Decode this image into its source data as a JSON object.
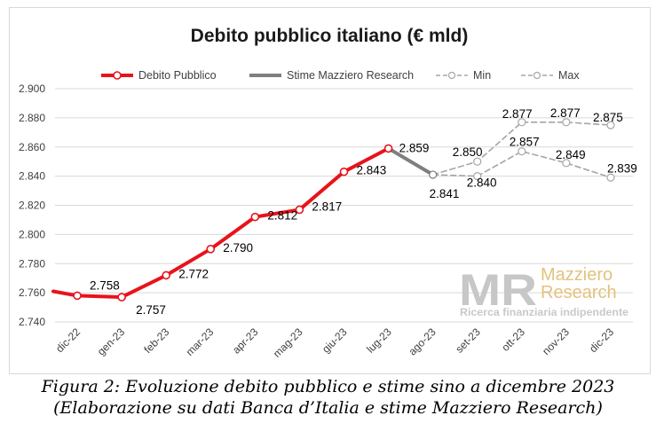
{
  "chart_data": {
    "type": "line",
    "title": "Debito pubblico italiano (€ mld)",
    "categories": [
      "dic-22",
      "gen-23",
      "feb-23",
      "mar-23",
      "apr-23",
      "mag-23",
      "giu-23",
      "lug-23",
      "ago-23",
      "set-23",
      "ott-23",
      "nov-23",
      "dic-23"
    ],
    "ylim": [
      2740,
      2900
    ],
    "yticks": [
      "2.740",
      "2.760",
      "2.780",
      "2.800",
      "2.820",
      "2.840",
      "2.860",
      "2.880",
      "2.900"
    ],
    "grid": "horizontal",
    "legend": "top",
    "series": [
      {
        "name": "Debito Pubblico",
        "color": "#e8131b",
        "style": "solid",
        "marker": true,
        "values": [
          2758,
          2757,
          2772,
          2790,
          2812,
          2817,
          2843,
          2859,
          null,
          null,
          null,
          null,
          null
        ],
        "labels": [
          "2.758",
          "2.757",
          "2.772",
          "2.790",
          "2.812",
          "2.817",
          "2.843",
          "2.859",
          null,
          null,
          null,
          null,
          null
        ]
      },
      {
        "name": "Stime Mazziero Research",
        "color": "#7f7f7f",
        "style": "solid",
        "marker": false,
        "values": [
          null,
          null,
          null,
          null,
          null,
          null,
          null,
          2859,
          2841,
          null,
          null,
          null,
          null
        ],
        "labels": [
          null,
          null,
          null,
          null,
          null,
          null,
          null,
          null,
          "2.841",
          null,
          null,
          null,
          null
        ]
      },
      {
        "name": "Min",
        "color": "#a6a6a6",
        "style": "dashed",
        "marker": true,
        "values": [
          null,
          null,
          null,
          null,
          null,
          null,
          null,
          null,
          2841,
          2840,
          2857,
          2849,
          2839
        ],
        "labels": [
          null,
          null,
          null,
          null,
          null,
          null,
          null,
          null,
          null,
          "2.840",
          "2.857",
          "2.849",
          "2.839"
        ]
      },
      {
        "name": "Max",
        "color": "#a6a6a6",
        "style": "dashed",
        "marker": true,
        "values": [
          null,
          null,
          null,
          null,
          null,
          null,
          null,
          null,
          2841,
          2850,
          2877,
          2877,
          2875
        ],
        "labels": [
          null,
          null,
          null,
          null,
          null,
          null,
          null,
          null,
          null,
          "2.850",
          "2.877",
          "2.877",
          "2.875"
        ]
      }
    ]
  },
  "watermark": {
    "logo_text": "MR",
    "name_line1": "Mazziero",
    "name_line2": "Research",
    "tagline": "Ricerca finanziaria indipendente"
  },
  "caption": {
    "line1": "Figura 2: Evoluzione debito pubblico e stime sino a dicembre 2023",
    "line2": "(Elaborazione su dati Banca d’Italia e stime Mazziero Research)"
  }
}
